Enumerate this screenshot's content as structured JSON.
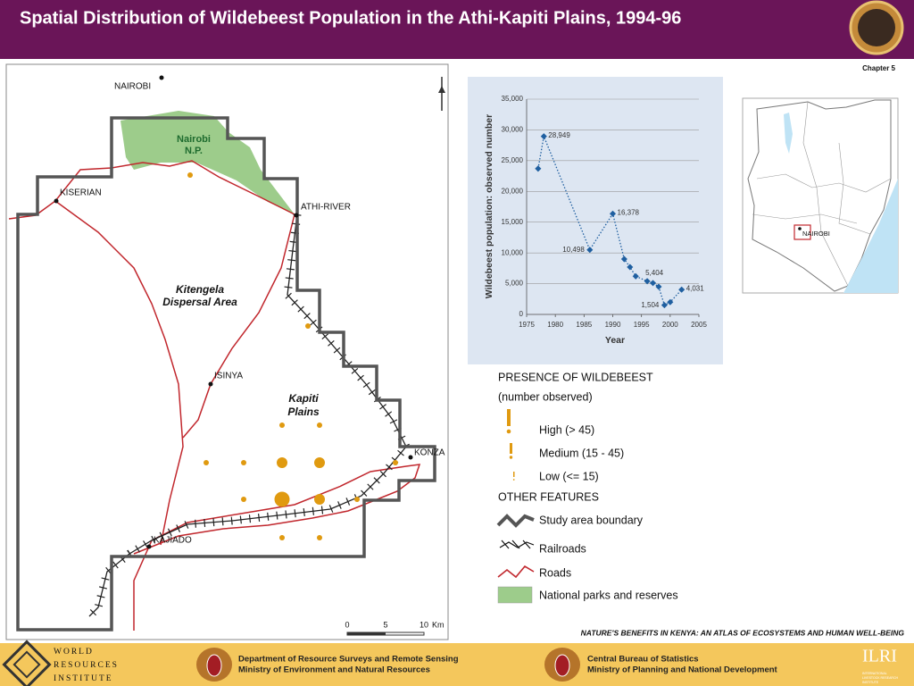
{
  "header": {
    "title": "Spatial Distribution of Wildebeest Population in the Athi-Kapiti Plains, 1994-96"
  },
  "chapter": "Chapter 5",
  "map": {
    "towns": [
      "NAIROBI",
      "KISERIAN",
      "ATHI-RIVER",
      "ISINYA",
      "KONZA",
      "KAJIADO"
    ],
    "park": [
      "Nairobi",
      "N.P."
    ],
    "areas": [
      [
        "Kitengela",
        "Dispersal Area"
      ],
      [
        "Kapiti",
        "Plains"
      ]
    ],
    "scale": [
      "0",
      "5",
      "10"
    ],
    "scale_unit": "Km"
  },
  "chart_data": {
    "type": "line",
    "x_label": "Year",
    "y_label": "Wildebeest population: observed number",
    "x": [
      1977,
      1978,
      1986,
      1990,
      1992,
      1993,
      1994,
      1996,
      1997,
      1998,
      1999,
      2000,
      2002
    ],
    "values": [
      23700,
      28949,
      10498,
      16378,
      9000,
      7700,
      6200,
      5404,
      5100,
      4500,
      1504,
      2000,
      4031
    ],
    "value_labels": [
      null,
      "28,949",
      "10,498",
      "16,378",
      null,
      null,
      null,
      "5,404",
      null,
      null,
      "1,504",
      null,
      "4,031"
    ],
    "color": "#1f5fa0",
    "xlim": [
      1975,
      2005
    ],
    "xticks": [
      1975,
      1980,
      1985,
      1990,
      1995,
      2000,
      2005
    ],
    "ylim": [
      0,
      35000
    ],
    "yticks": [
      0,
      {
        "value": 5000,
        "label": "5,000"
      },
      {
        "value": 10000,
        "label": "10,000"
      },
      {
        "value": 15000,
        "label": "15,000"
      },
      {
        "value": 20000,
        "label": "20,000"
      },
      {
        "value": 25000,
        "label": "25,000"
      },
      {
        "value": 30000,
        "label": "30,000"
      },
      {
        "value": 35000,
        "label": "35,000"
      }
    ],
    "grid": true
  },
  "inset_map": {
    "label": "NAIROBI"
  },
  "legend": {
    "title": "PRESENCE OF WILDEBEEST",
    "subtitle": "(number observed)",
    "presence": [
      "High (> 45)",
      "Medium (15 - 45)",
      "Low (<= 15)"
    ],
    "other_title": "OTHER FEATURES",
    "other": [
      "Study area boundary",
      "Railroads",
      "Roads",
      "National parks and reserves"
    ]
  },
  "source": "NATURE'S BENEFITS IN KENYA: AN ATLAS OF ECOSYSTEMS AND HUMAN WELL-BEING",
  "footer": {
    "wri": [
      "WORLD",
      "RESOURCES",
      "INSTITUTE"
    ],
    "drsrs": [
      "Department of Resource Surveys and Remote Sensing",
      "Ministry of Environment and Natural Resources"
    ],
    "cbs": [
      "Central Bureau of Statistics",
      "Ministry of Planning and National Development"
    ],
    "ilri": "ILRI",
    "ilri_sub": [
      "INTERNATIONAL",
      "LIVESTOCK RESEARCH",
      "INSTITUTE"
    ]
  }
}
